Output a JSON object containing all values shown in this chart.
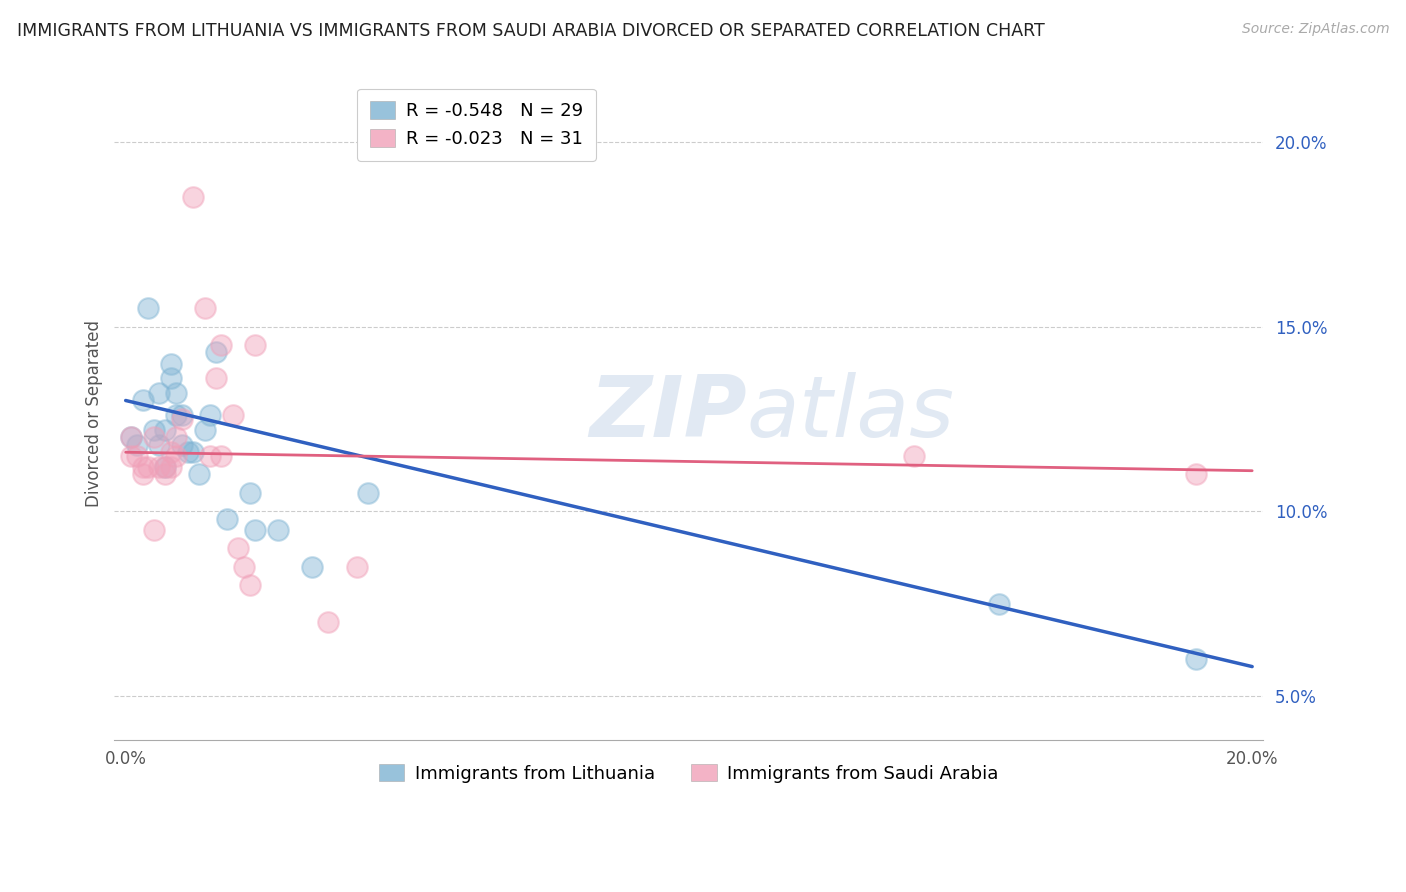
{
  "title": "IMMIGRANTS FROM LITHUANIA VS IMMIGRANTS FROM SAUDI ARABIA DIVORCED OR SEPARATED CORRELATION CHART",
  "source": "Source: ZipAtlas.com",
  "ylabel": "Divorced or Separated",
  "legend_entries": [
    {
      "label": "R = -0.548   N = 29",
      "color": "#a8c4e0"
    },
    {
      "label": "R = -0.023   N = 31",
      "color": "#f4a8b8"
    }
  ],
  "blue_scatter_x": [
    0.001,
    0.002,
    0.003,
    0.004,
    0.005,
    0.006,
    0.006,
    0.007,
    0.007,
    0.008,
    0.008,
    0.009,
    0.009,
    0.01,
    0.01,
    0.011,
    0.012,
    0.013,
    0.014,
    0.015,
    0.016,
    0.018,
    0.022,
    0.023,
    0.027,
    0.033,
    0.043,
    0.155,
    0.19
  ],
  "blue_scatter_y": [
    0.12,
    0.118,
    0.13,
    0.155,
    0.122,
    0.118,
    0.132,
    0.122,
    0.112,
    0.136,
    0.14,
    0.132,
    0.126,
    0.126,
    0.118,
    0.116,
    0.116,
    0.11,
    0.122,
    0.126,
    0.143,
    0.098,
    0.105,
    0.095,
    0.095,
    0.085,
    0.105,
    0.075,
    0.06
  ],
  "pink_scatter_x": [
    0.001,
    0.001,
    0.002,
    0.003,
    0.003,
    0.004,
    0.005,
    0.005,
    0.006,
    0.007,
    0.007,
    0.008,
    0.008,
    0.009,
    0.009,
    0.01,
    0.012,
    0.014,
    0.015,
    0.016,
    0.017,
    0.017,
    0.019,
    0.02,
    0.021,
    0.022,
    0.023,
    0.036,
    0.041,
    0.14,
    0.19
  ],
  "pink_scatter_y": [
    0.12,
    0.115,
    0.115,
    0.112,
    0.11,
    0.112,
    0.12,
    0.095,
    0.112,
    0.112,
    0.11,
    0.116,
    0.112,
    0.115,
    0.12,
    0.125,
    0.185,
    0.155,
    0.115,
    0.136,
    0.145,
    0.115,
    0.126,
    0.09,
    0.085,
    0.08,
    0.145,
    0.07,
    0.085,
    0.115,
    0.11
  ],
  "blue_line_x": [
    0.0,
    0.2
  ],
  "blue_line_y": [
    0.13,
    0.058
  ],
  "pink_line_x": [
    0.0,
    0.2
  ],
  "pink_line_y": [
    0.116,
    0.111
  ],
  "xlim": [
    -0.002,
    0.202
  ],
  "ylim": [
    0.038,
    0.215
  ],
  "yticks": [
    0.05,
    0.1,
    0.15,
    0.2
  ],
  "ytick_labels": [
    "5.0%",
    "10.0%",
    "15.0%",
    "20.0%"
  ],
  "xticks": [
    0.0,
    0.05,
    0.1,
    0.15,
    0.2
  ],
  "xtick_labels": [
    "0.0%",
    "",
    "",
    "",
    "20.0%"
  ],
  "blue_color": "#7fb3d3",
  "pink_color": "#f0a0b8",
  "blue_line_color": "#3060c0",
  "pink_line_color": "#e06080",
  "grid_color": "#cccccc",
  "watermark_zip": "ZIP",
  "watermark_atlas": "atlas",
  "bg_color": "#ffffff",
  "legend_label_blue": "Immigrants from Lithuania",
  "legend_label_pink": "Immigrants from Saudi Arabia"
}
